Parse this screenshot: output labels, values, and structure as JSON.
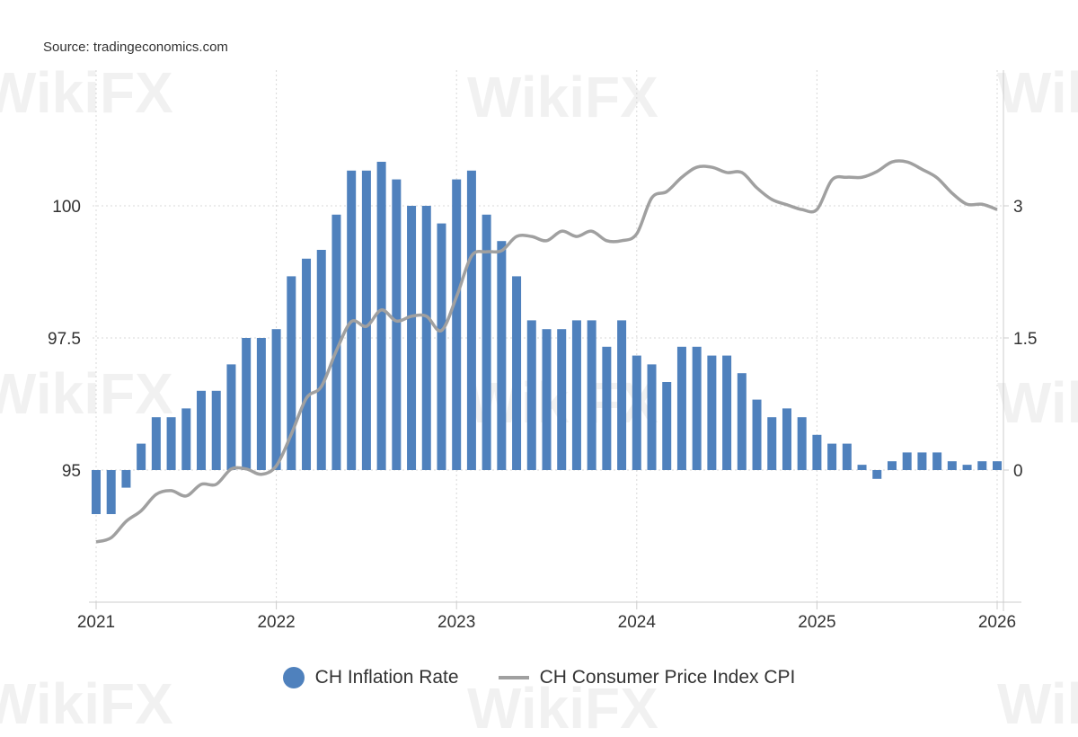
{
  "source": "Source: tradingeconomics.com",
  "watermark": "WikiFX",
  "chart_data": {
    "type": "bar+line",
    "title": "",
    "xlabel": "",
    "x_ticks": [
      "2021",
      "2022",
      "2023",
      "2024",
      "2025",
      "2026"
    ],
    "left_axis": {
      "ticks": [
        "95",
        "97.5",
        "100"
      ],
      "range": [
        92.5,
        102.6
      ]
    },
    "right_axis": {
      "ticks": [
        "0",
        "1.5",
        "3"
      ],
      "range": [
        -1.5,
        4.5
      ]
    },
    "grid": true,
    "legend_position": "bottom",
    "months": [
      "2021-01",
      "2021-02",
      "2021-03",
      "2021-04",
      "2021-05",
      "2021-06",
      "2021-07",
      "2021-08",
      "2021-09",
      "2021-10",
      "2021-11",
      "2021-12",
      "2022-01",
      "2022-02",
      "2022-03",
      "2022-04",
      "2022-05",
      "2022-06",
      "2022-07",
      "2022-08",
      "2022-09",
      "2022-10",
      "2022-11",
      "2022-12",
      "2023-01",
      "2023-02",
      "2023-03",
      "2023-04",
      "2023-05",
      "2023-06",
      "2023-07",
      "2023-08",
      "2023-09",
      "2023-10",
      "2023-11",
      "2023-12",
      "2024-01",
      "2024-02",
      "2024-03",
      "2024-04",
      "2024-05",
      "2024-06",
      "2024-07",
      "2024-08",
      "2024-09",
      "2024-10",
      "2024-11",
      "2024-12",
      "2025-01",
      "2025-02",
      "2025-03",
      "2025-04",
      "2025-05",
      "2025-06",
      "2025-07",
      "2025-08",
      "2025-09",
      "2025-10",
      "2025-11",
      "2025-12",
      "2026-01"
    ],
    "series": [
      {
        "name": "CH Inflation Rate",
        "type": "bar",
        "axis": "right",
        "color": "#4f81bd",
        "values": [
          -0.5,
          -0.5,
          -0.2,
          0.3,
          0.6,
          0.6,
          0.7,
          0.9,
          0.9,
          1.2,
          1.5,
          1.5,
          1.6,
          2.2,
          2.4,
          2.5,
          2.9,
          3.4,
          3.4,
          3.5,
          3.3,
          3.0,
          3.0,
          2.8,
          3.3,
          3.4,
          2.9,
          2.6,
          2.2,
          1.7,
          1.6,
          1.6,
          1.7,
          1.7,
          1.4,
          1.7,
          1.3,
          1.2,
          1.0,
          1.4,
          1.4,
          1.3,
          1.3,
          1.1,
          0.8,
          0.6,
          0.7,
          0.6,
          0.4,
          0.3,
          0.3,
          0.0,
          -0.1,
          0.1,
          0.2,
          0.2,
          0.2,
          0.1,
          0.0,
          0.1,
          0.1
        ]
      },
      {
        "name": "CH Consumer Price Index CPI",
        "type": "line",
        "axis": "left",
        "color": "#a0a0a0",
        "values": [
          93.64,
          93.72,
          94.03,
          94.23,
          94.54,
          94.61,
          94.51,
          94.73,
          94.73,
          95.02,
          95.02,
          94.92,
          95.08,
          95.68,
          96.36,
          96.58,
          97.26,
          97.81,
          97.72,
          98.03,
          97.82,
          97.91,
          97.91,
          97.64,
          98.28,
          99.05,
          99.13,
          99.15,
          99.42,
          99.42,
          99.34,
          99.52,
          99.42,
          99.52,
          99.34,
          99.34,
          99.47,
          100.15,
          100.27,
          100.54,
          100.73,
          100.73,
          100.63,
          100.63,
          100.34,
          100.12,
          100.02,
          99.93,
          99.93,
          100.49,
          100.54,
          100.54,
          100.65,
          100.83,
          100.83,
          100.69,
          100.53,
          100.24,
          100.03,
          100.03,
          99.93
        ]
      }
    ]
  }
}
